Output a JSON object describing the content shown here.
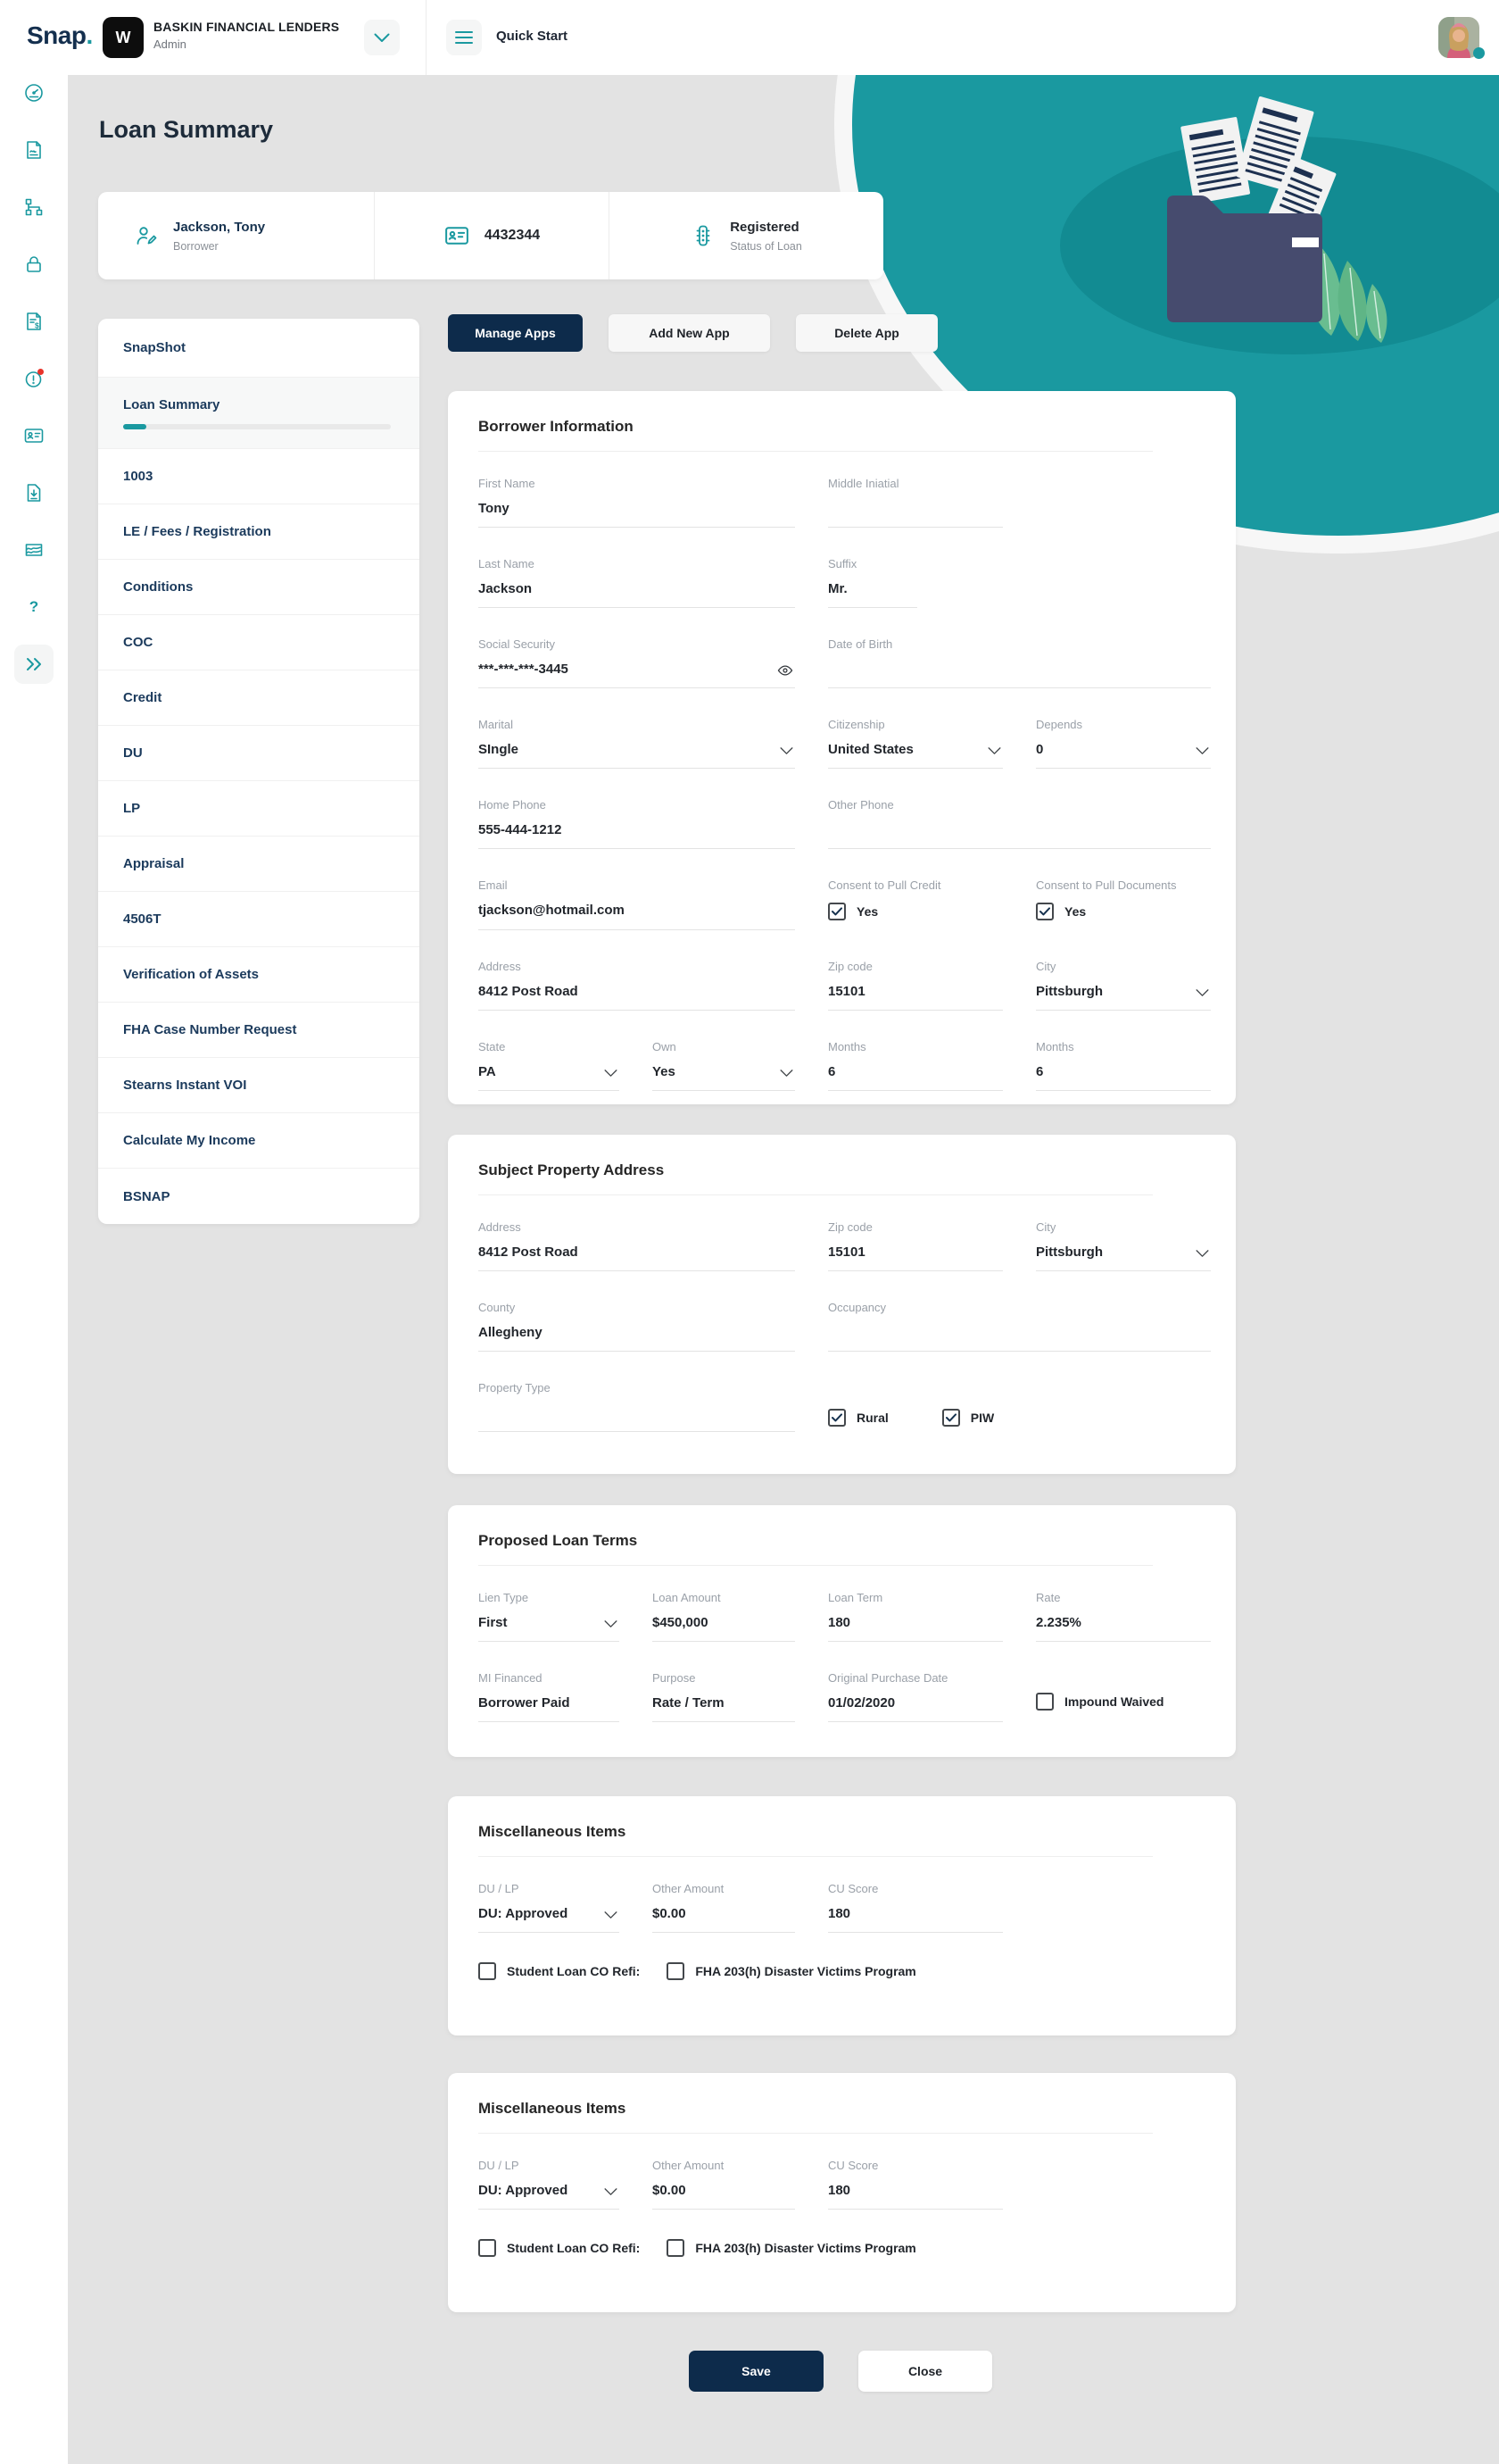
{
  "colors": {
    "accent_teal": "#1a99a0",
    "primary_navy": "#0d2b4b",
    "page_bg": "#e3e3e3",
    "blob_inner_teal": "#128b92",
    "folder_navy": "#464b6e",
    "leaf_green": "#69bd90",
    "alert_red": "#e8332a"
  },
  "header": {
    "logo_text": "Snap",
    "logo_dot": ".",
    "org_initial": "W",
    "org_name": "BASKIN FINANCIAL LENDERS",
    "org_role": "Admin",
    "quick_start_label": "Quick Start"
  },
  "rail": {
    "icons": [
      "dashboard-gauge",
      "document-signature",
      "workflow",
      "lock",
      "invoice-dollar",
      "alert-clock",
      "id-card",
      "document-download",
      "chart",
      "help",
      "collapse-sidebar"
    ]
  },
  "page": {
    "title": "Loan Summary"
  },
  "loan_card": {
    "borrower_name": "Jackson, Tony",
    "borrower_role": "Borrower",
    "loan_number": "4432344",
    "status_value": "Registered",
    "status_label": "Status of Loan"
  },
  "sidebar": {
    "items": [
      {
        "label": "SnapShot"
      },
      {
        "label": "Loan Summary",
        "active": true
      },
      {
        "label": "1003"
      },
      {
        "label": "LE / Fees / Registration"
      },
      {
        "label": "Conditions"
      },
      {
        "label": "COC"
      },
      {
        "label": "Credit"
      },
      {
        "label": "DU"
      },
      {
        "label": "LP"
      },
      {
        "label": "Appraisal"
      },
      {
        "label": "4506T"
      },
      {
        "label": "Verification of Assets"
      },
      {
        "label": "FHA Case Number Request"
      },
      {
        "label": "Stearns Instant VOI"
      },
      {
        "label": "Calculate My Income"
      },
      {
        "label": "BSNAP"
      }
    ]
  },
  "toolbar": {
    "manage_apps": "Manage Apps",
    "add_new_app": "Add New App",
    "delete_app": "Delete App"
  },
  "sections": {
    "borrower": {
      "title": "Borrower Information",
      "fields": {
        "first_name": {
          "label": "First Name",
          "value": "Tony"
        },
        "middle_initial": {
          "label": "Middle Iniatial",
          "value": ""
        },
        "last_name": {
          "label": "Last Name",
          "value": "Jackson"
        },
        "suffix": {
          "label": "Suffix",
          "value": "Mr."
        },
        "ssn": {
          "label": "Social Security",
          "value": "***-***-***-3445"
        },
        "dob": {
          "label": "Date of Birth",
          "value": ""
        },
        "marital": {
          "label": "Marital",
          "value": "SIngle"
        },
        "citizenship": {
          "label": "Citizenship",
          "value": "United States"
        },
        "depends": {
          "label": "Depends",
          "value": "0"
        },
        "home_phone": {
          "label": "Home Phone",
          "value": "555-444-1212"
        },
        "other_phone": {
          "label": "Other Phone",
          "value": ""
        },
        "email": {
          "label": "Email",
          "value": "tjackson@hotmail.com"
        },
        "consent_credit": {
          "label": "Consent to Pull Credit",
          "value": "Yes",
          "checked": true
        },
        "consent_docs": {
          "label": "Consent to Pull Documents",
          "value": "Yes",
          "checked": true
        },
        "address": {
          "label": "Address",
          "value": "8412 Post Road"
        },
        "zip": {
          "label": "Zip code",
          "value": "15101"
        },
        "city": {
          "label": "City",
          "value": "Pittsburgh"
        },
        "state": {
          "label": "State",
          "value": "PA"
        },
        "own": {
          "label": "Own",
          "value": "Yes"
        },
        "months1": {
          "label": "Months",
          "value": "6"
        },
        "months2": {
          "label": "Months",
          "value": "6"
        }
      }
    },
    "property": {
      "title": "Subject Property Address",
      "fields": {
        "address": {
          "label": "Address",
          "value": "8412 Post Road"
        },
        "zip": {
          "label": "Zip code",
          "value": "15101"
        },
        "city": {
          "label": "City",
          "value": "Pittsburgh"
        },
        "county": {
          "label": "County",
          "value": "Allegheny"
        },
        "occupancy": {
          "label": "Occupancy",
          "value": ""
        },
        "property_type": {
          "label": "Property Type",
          "value": ""
        },
        "rural": {
          "label": "Rural",
          "checked": true
        },
        "piw": {
          "label": "PIW",
          "checked": true
        }
      }
    },
    "terms": {
      "title": "Proposed Loan Terms",
      "fields": {
        "lien_type": {
          "label": "Lien Type",
          "value": "First"
        },
        "loan_amount": {
          "label": "Loan Amount",
          "value": "$450,000"
        },
        "loan_term": {
          "label": "Loan Term",
          "value": "180"
        },
        "rate": {
          "label": "Rate",
          "value": "2.235%"
        },
        "mi_financed": {
          "label": "MI Financed",
          "value": "Borrower Paid"
        },
        "purpose": {
          "label": "Purpose",
          "value": "Rate / Term"
        },
        "original_purchase_date": {
          "label": "Original Purchase Date",
          "value": "01/02/2020"
        },
        "impound_waived": {
          "label": "Impound Waived",
          "checked": false
        }
      }
    },
    "misc": [
      {
        "title": "Miscellaneous Items",
        "fields": {
          "du_lp": {
            "label": "DU / LP",
            "value": "DU: Approved"
          },
          "other_amount": {
            "label": "Other Amount",
            "value": "$0.00"
          },
          "cu_score": {
            "label": "CU Score",
            "value": "180"
          },
          "student_refi": {
            "label": "Student Loan CO Refi:",
            "checked": false
          },
          "fha_203h": {
            "label": "FHA 203(h) Disaster Victims Program",
            "checked": false
          }
        }
      },
      {
        "title": "Miscellaneous Items",
        "fields": {
          "du_lp": {
            "label": "DU / LP",
            "value": "DU: Approved"
          },
          "other_amount": {
            "label": "Other Amount",
            "value": "$0.00"
          },
          "cu_score": {
            "label": "CU Score",
            "value": "180"
          },
          "student_refi": {
            "label": "Student Loan CO Refi:",
            "checked": false
          },
          "fha_203h": {
            "label": "FHA 203(h) Disaster Victims Program",
            "checked": false
          }
        }
      }
    ]
  },
  "footer": {
    "save": "Save",
    "close": "Close"
  }
}
